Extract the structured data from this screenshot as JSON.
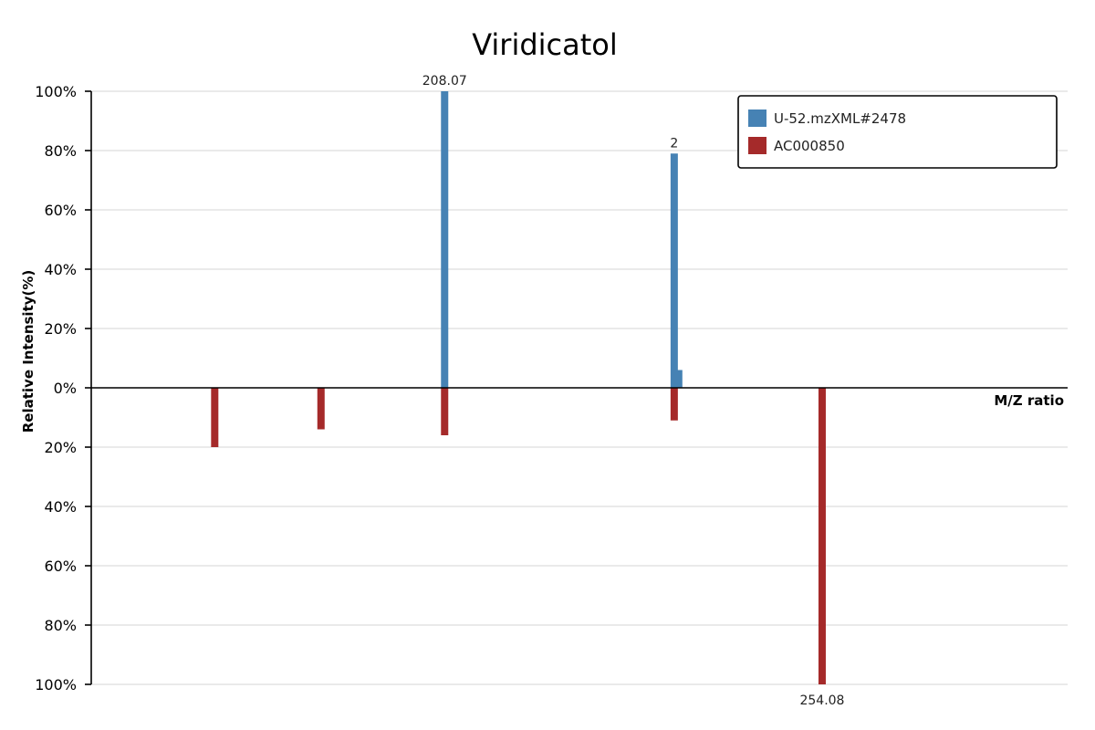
{
  "chart_data": {
    "type": "bar",
    "title": "Viridicatol",
    "xlabel": "M/Z ratio",
    "ylabel": "Relative Intensity(%)",
    "ylim_top": [
      0,
      100
    ],
    "ylim_bottom": [
      0,
      100
    ],
    "y_ticks_top": [
      "100%",
      "80%",
      "60%",
      "40%",
      "20%",
      "0%"
    ],
    "y_ticks_bottom": [
      "20%",
      "40%",
      "60%",
      "80%",
      "100%"
    ],
    "grid": true,
    "legend_position": "top-right",
    "series": [
      {
        "name": "U-52.mzXML#2478",
        "color": "#4682b4",
        "direction": "up",
        "peaks": [
          {
            "mz": 208.07,
            "intensity": 100,
            "label": "208.07"
          },
          {
            "mz": 236.05,
            "intensity": 79,
            "label": "2"
          },
          {
            "mz": 236.6,
            "intensity": 6,
            "label": ""
          }
        ]
      },
      {
        "name": "AC000850",
        "color": "#a52a2a",
        "direction": "down",
        "peaks": [
          {
            "mz": 180.05,
            "intensity": 20,
            "label": ""
          },
          {
            "mz": 193.0,
            "intensity": 14,
            "label": ""
          },
          {
            "mz": 208.07,
            "intensity": 16,
            "label": ""
          },
          {
            "mz": 236.05,
            "intensity": 11,
            "label": ""
          },
          {
            "mz": 254.08,
            "intensity": 100,
            "label": "254.08"
          }
        ]
      }
    ]
  }
}
